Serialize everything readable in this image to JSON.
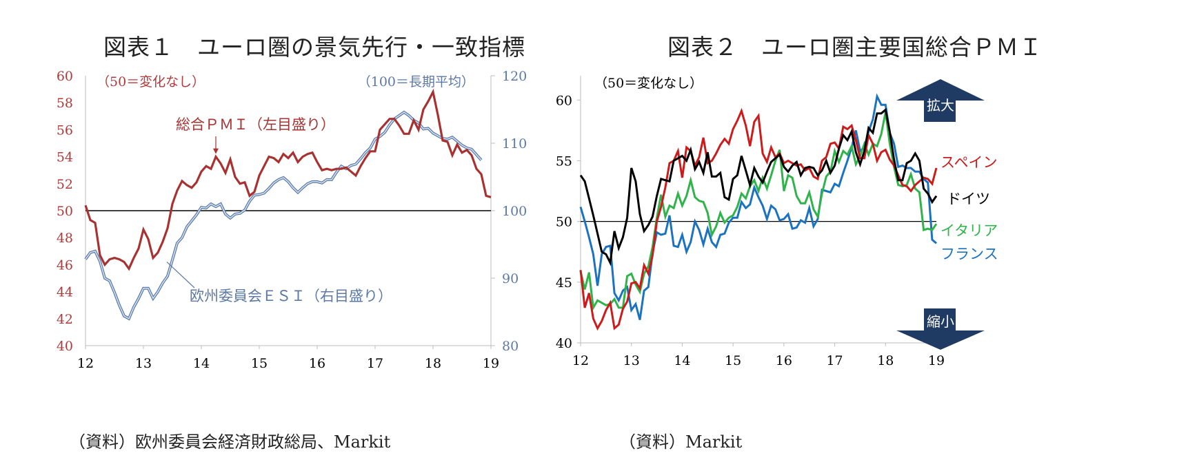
{
  "panels": [
    {
      "title": "図表１　ユーロ圏の景気先行・一致指標",
      "source": "（資料）欧州委員会経済財政総局、Markit",
      "colors": {
        "pmi": "#a83232",
        "esi": "#7393bf",
        "axis_left": "#b03a3a",
        "axis_right": "#5b78a6"
      }
    },
    {
      "title": "図表２　ユーロ圏主要国総合ＰＭＩ",
      "source": "（資料）Markit",
      "colors": {
        "spain": "#cc1b1b",
        "germany": "#000000",
        "italy": "#2fb34a",
        "france": "#1a72c0",
        "arrow": "#1f3b63"
      }
    }
  ],
  "chart_data": [
    {
      "type": "line",
      "title": "図表１　ユーロ圏の景気先行・一致指標",
      "x_ticks": [
        "12",
        "13",
        "14",
        "15",
        "16",
        "17",
        "18",
        "19"
      ],
      "y_left": {
        "range": [
          40,
          60
        ],
        "ticks": [
          40,
          42,
          44,
          46,
          48,
          50,
          52,
          54,
          56,
          58,
          60
        ],
        "note": "（50＝変化なし）"
      },
      "y_right": {
        "range": [
          80,
          120
        ],
        "ticks": [
          80,
          90,
          100,
          110,
          120
        ],
        "note": "（100＝長期平均）"
      },
      "reference_line": 50,
      "series": [
        {
          "name": "総合ＰＭＩ（左目盛り）",
          "axis": "left",
          "x_start": "2012-01",
          "values": [
            50.4,
            49.3,
            49.1,
            46.7,
            46.0,
            46.4,
            46.5,
            46.4,
            46.2,
            45.7,
            46.5,
            47.2,
            48.6,
            47.9,
            46.5,
            46.9,
            47.7,
            48.7,
            50.5,
            51.5,
            52.2,
            51.9,
            51.7,
            52.1,
            52.9,
            53.3,
            53.1,
            54.0,
            53.5,
            52.8,
            53.8,
            52.5,
            52.0,
            52.1,
            51.1,
            51.4,
            52.6,
            53.3,
            54.0,
            53.9,
            53.6,
            54.2,
            53.9,
            54.3,
            53.6,
            54.0,
            54.2,
            54.3,
            53.6,
            53.0,
            53.1,
            53.0,
            53.1,
            53.1,
            53.2,
            52.9,
            52.6,
            53.3,
            53.9,
            54.4,
            54.4,
            56.0,
            56.4,
            56.8,
            56.8,
            56.3,
            55.7,
            55.7,
            56.7,
            56.0,
            57.5,
            58.1,
            58.8,
            57.1,
            55.2,
            55.1,
            54.1,
            54.9,
            54.3,
            54.5,
            54.1,
            53.1,
            52.7,
            51.1,
            51.0
          ],
          "label": "総合ＰＭＩ（左目盛り）"
        },
        {
          "name": "欧州委員会ＥＳＩ（右目盛り）",
          "axis": "right",
          "x_start": "2012-01",
          "values": [
            92.8,
            93.8,
            94.0,
            92.5,
            90.0,
            89.6,
            87.9,
            86.0,
            84.4,
            84.0,
            85.7,
            87.0,
            88.5,
            88.5,
            87.0,
            88.0,
            89.3,
            90.3,
            92.7,
            95.2,
            96.0,
            97.6,
            98.5,
            99.4,
            100.5,
            100.4,
            101.0,
            100.6,
            101.0,
            99.5,
            98.9,
            99.5,
            99.6,
            100.1,
            101.4,
            102.3,
            102.4,
            102.6,
            103.3,
            104.1,
            104.6,
            104.9,
            104.3,
            103.4,
            102.7,
            103.4,
            104.0,
            104.3,
            104.3,
            104.1,
            104.6,
            104.6,
            105.7,
            106.6,
            106.2,
            106.7,
            106.9,
            107.7,
            108.6,
            109.3,
            110.6,
            111.0,
            111.6,
            112.7,
            113.6,
            114.1,
            114.6,
            114.1,
            113.4,
            113.0,
            112.1,
            112.2,
            111.5,
            111.1,
            110.7,
            110.6,
            110.9,
            110.3,
            109.7,
            109.3,
            109.1,
            108.3,
            107.5
          ],
          "label": "欧州委員会ＥＳＩ（右目盛り）"
        }
      ]
    },
    {
      "type": "line",
      "title": "図表２　ユーロ圏主要国総合ＰＭＩ",
      "x_ticks": [
        "12",
        "13",
        "14",
        "15",
        "16",
        "17",
        "18",
        "19"
      ],
      "y": {
        "range": [
          40,
          62
        ],
        "ticks": [
          40,
          45,
          50,
          55,
          60
        ],
        "note": "（50＝変化なし）"
      },
      "reference_line": 50,
      "arrows": {
        "up": "拡大",
        "down": "縮小"
      },
      "series": [
        {
          "name": "スペイン",
          "x_start": "2012-01",
          "values": [
            46.0,
            42.9,
            44.1,
            42.0,
            41.2,
            41.8,
            42.7,
            43.3,
            41.2,
            41.5,
            42.8,
            43.4,
            44.9,
            45.0,
            44.5,
            46.4,
            45.7,
            47.2,
            50.0,
            51.2,
            52.8,
            54.8,
            55.0,
            55.8,
            53.6,
            56.1,
            55.8,
            54.6,
            55.3,
            56.9,
            54.8,
            55.0,
            55.6,
            56.3,
            56.8,
            56.4,
            57.6,
            58.3,
            59.1,
            57.9,
            56.2,
            58.2,
            58.7,
            55.6,
            54.9,
            56.1,
            55.3,
            55.6,
            54.8,
            55.0,
            54.8,
            54.6,
            54.7,
            54.2,
            54.4,
            53.7,
            53.5,
            55.0,
            55.3,
            56.4,
            56.5,
            56.0,
            57.8,
            57.6,
            57.9,
            56.7,
            55.2,
            55.2,
            57.1,
            56.4,
            55.0,
            55.7,
            55.9,
            55.1,
            54.6,
            53.8,
            53.0,
            52.9,
            52.5,
            53.0,
            53.3,
            53.6,
            53.5,
            53.1,
            54.4
          ],
          "label": "スペイン"
        },
        {
          "name": "ドイツ",
          "x_start": "2012-01",
          "values": [
            53.8,
            53.3,
            51.9,
            50.5,
            49.0,
            47.5,
            47.3,
            46.6,
            49.2,
            47.8,
            48.7,
            50.3,
            54.4,
            53.3,
            50.6,
            49.2,
            49.7,
            50.4,
            52.1,
            53.5,
            53.4,
            53.3,
            55.0,
            55.2,
            55.4,
            55.0,
            55.9,
            54.3,
            54.9,
            54.0,
            55.7,
            53.7,
            53.7,
            54.0,
            52.0,
            51.8,
            53.5,
            53.8,
            55.4,
            54.2,
            53.0,
            54.4,
            53.7,
            53.2,
            54.1,
            54.9,
            55.2,
            55.5,
            54.5,
            54.1,
            54.6,
            54.9,
            53.8,
            54.4,
            54.5,
            54.4,
            53.8,
            54.2,
            55.0,
            54.0,
            54.6,
            56.0,
            57.1,
            56.7,
            57.4,
            55.7,
            54.7,
            55.8,
            57.7,
            57.3,
            58.9,
            58.9,
            59.2,
            57.4,
            55.1,
            53.4,
            53.4,
            54.8,
            55.0,
            55.6,
            55.0,
            52.7,
            52.3,
            51.6,
            52.1
          ],
          "label": "ドイツ"
        },
        {
          "name": "イタリア",
          "x_start": "2012-01",
          "values": [
            45.9,
            44.4,
            45.8,
            42.9,
            43.5,
            43.3,
            43.1,
            43.2,
            43.6,
            42.9,
            42.9,
            45.5,
            45.7,
            44.8,
            44.2,
            45.7,
            46.3,
            47.9,
            50.3,
            52.2,
            50.4,
            51.3,
            51.1,
            52.3,
            51.3,
            52.1,
            53.4,
            52.0,
            51.7,
            51.6,
            50.7,
            48.9,
            49.6,
            50.7,
            49.9,
            50.3,
            50.5,
            51.2,
            52.3,
            51.9,
            52.9,
            53.4,
            52.5,
            53.6,
            52.7,
            53.8,
            55.0,
            55.9,
            52.5,
            53.8,
            53.6,
            52.1,
            51.5,
            51.5,
            52.4,
            51.0,
            50.4,
            52.3,
            53.7,
            54.1,
            55.8,
            54.9,
            55.8,
            55.5,
            56.2,
            54.7,
            55.4,
            56.4,
            55.5,
            56.4,
            56.2,
            57.2,
            59.0,
            56.4,
            54.5,
            53.0,
            52.9,
            53.0,
            53.9,
            52.7,
            52.4,
            49.3,
            49.4,
            49.3,
            49.8
          ],
          "label": "イタリア"
        },
        {
          "name": "フランス",
          "x_start": "2012-01",
          "values": [
            51.2,
            50.0,
            48.7,
            47.3,
            44.7,
            47.3,
            47.9,
            48.0,
            44.1,
            43.5,
            44.3,
            44.6,
            42.7,
            43.2,
            41.9,
            44.3,
            44.6,
            47.4,
            49.1,
            48.9,
            49.0,
            50.5,
            48.0,
            47.9,
            48.9,
            47.5,
            48.3,
            50.0,
            49.3,
            48.1,
            49.4,
            48.3,
            47.9,
            48.9,
            49.0,
            49.9,
            50.3,
            50.3,
            51.6,
            51.1,
            51.4,
            52.8,
            52.0,
            51.3,
            50.2,
            51.3,
            51.0,
            50.1,
            50.2,
            50.6,
            49.4,
            49.5,
            50.1,
            49.9,
            51.1,
            49.6,
            50.2,
            52.6,
            52.5,
            52.4,
            53.1,
            52.9,
            54.0,
            55.0,
            56.1,
            57.5,
            55.8,
            56.1,
            57.4,
            58.4,
            60.3,
            59.6,
            59.6,
            57.3,
            56.4,
            54.5,
            54.6,
            54.4,
            54.4,
            54.1,
            54.1,
            53.5,
            53.2,
            48.5,
            48.2
          ],
          "label": "フランス"
        }
      ]
    }
  ]
}
